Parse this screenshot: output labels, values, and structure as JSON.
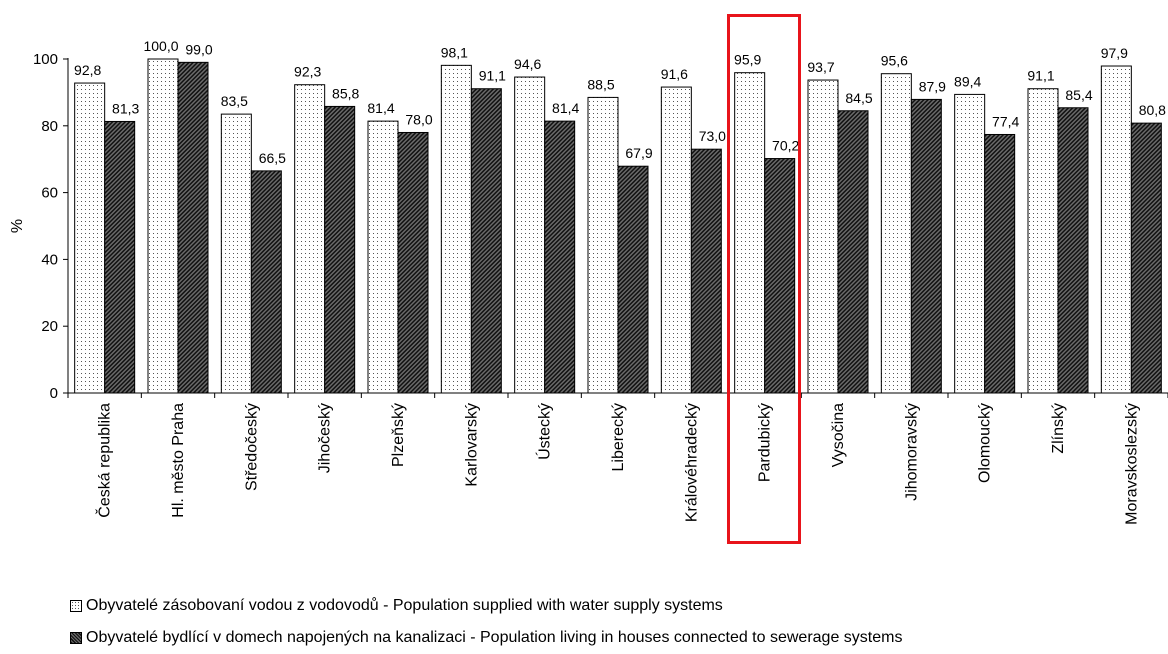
{
  "chart_data": {
    "type": "bar",
    "ylabel": "%",
    "ylim": [
      0,
      100
    ],
    "yticks": [
      0,
      20,
      40,
      60,
      80,
      100
    ],
    "grid": false,
    "legend_position": "bottom",
    "categories": [
      "Česká republika",
      "Hl. město Praha",
      "Středočeský",
      "Jihočeský",
      "Plzeňský",
      "Karlovarský",
      "Ústecký",
      "Liberecký",
      "Královéhradecký",
      "Pardubický",
      "Vysočina",
      "Jihomoravský",
      "Olomoucký",
      "Zlínský",
      "Moravskoslezský"
    ],
    "series": [
      {
        "name": "Obyvatelé zásobovaní vodou z vodovodů - Population supplied with water supply systems",
        "values": [
          92.8,
          100.0,
          83.5,
          92.3,
          81.4,
          98.1,
          94.6,
          88.5,
          91.6,
          95.9,
          93.7,
          95.6,
          89.4,
          91.1,
          97.9
        ],
        "labels": [
          "92,8",
          "100,0",
          "83,5",
          "92,3",
          "81,4",
          "98,1",
          "94,6",
          "88,5",
          "91,6",
          "95,9",
          "93,7",
          "95,6",
          "89,4",
          "91,1",
          "97,9"
        ]
      },
      {
        "name": "Obyvatelé bydlící v domech napojených na kanalizaci - Population living in houses connected to sewerage systems",
        "values": [
          81.3,
          99.0,
          66.5,
          85.8,
          78.0,
          91.1,
          81.4,
          67.9,
          73.0,
          70.2,
          84.5,
          87.9,
          77.4,
          85.4,
          80.8
        ],
        "labels": [
          "81,3",
          "99,0",
          "66,5",
          "85,8",
          "78,0",
          "91,1",
          "81,4",
          "67,9",
          "73,0",
          "70,2",
          "84,5",
          "87,9",
          "77,4",
          "85,4",
          "80,8"
        ]
      }
    ],
    "highlighted_category": "Pardubický",
    "highlight_color": "#e8141b"
  }
}
